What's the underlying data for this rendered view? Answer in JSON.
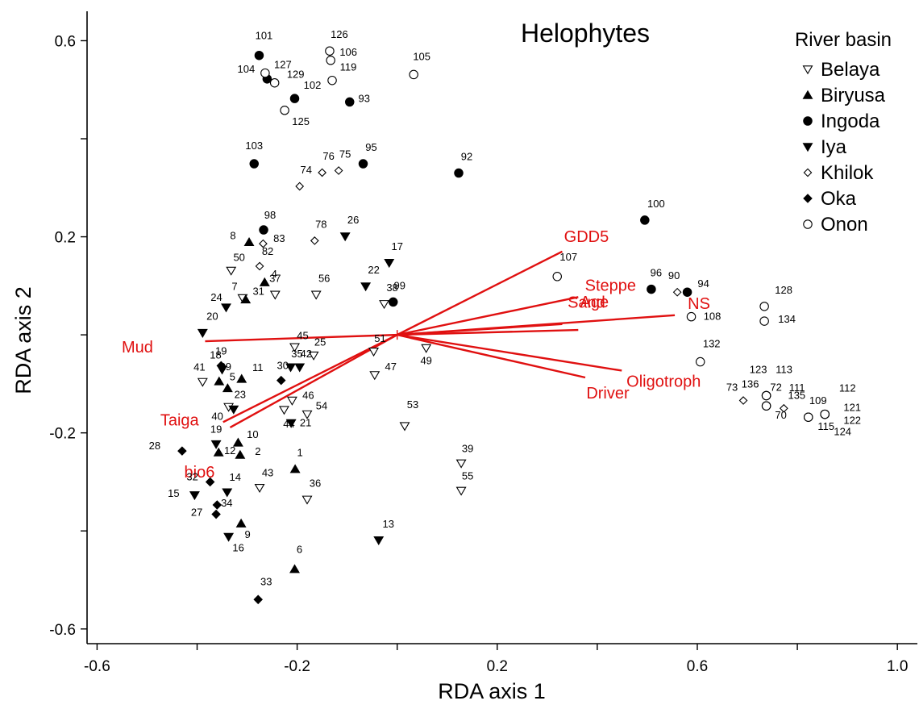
{
  "chart_data": {
    "type": "scatter",
    "title": "Helophytes",
    "xlabel": "RDA axis 1",
    "ylabel": "RDA axis 2",
    "xlim": [
      -0.62,
      1.04
    ],
    "ylim": [
      -0.63,
      0.66
    ],
    "xticks": [
      -0.6,
      -0.4,
      -0.2,
      0.0,
      0.2,
      0.4,
      0.6,
      0.8,
      1.0
    ],
    "yticks": [
      -0.6,
      -0.4,
      -0.2,
      0.0,
      0.2,
      0.4,
      0.6
    ],
    "xtick_labels": [
      "-0.6",
      "",
      "-0.2",
      "",
      "0.2",
      "",
      "0.6",
      "",
      "1.0"
    ],
    "ytick_labels": [
      "-0.6",
      "",
      "-0.2",
      "",
      "0.2",
      "",
      "0.6"
    ],
    "grid": false,
    "legend": {
      "title": "River basin",
      "position": "top-right",
      "items": [
        {
          "name": "Belaya",
          "marker": "triangle-down-open"
        },
        {
          "name": "Biryusa",
          "marker": "triangle-up-filled"
        },
        {
          "name": "Ingoda",
          "marker": "circle-filled"
        },
        {
          "name": "Iya",
          "marker": "triangle-down-filled"
        },
        {
          "name": "Khilok",
          "marker": "diamond-open"
        },
        {
          "name": "Oka",
          "marker": "diamond-filled"
        },
        {
          "name": "Onon",
          "marker": "circle-open"
        }
      ]
    },
    "series": [
      {
        "name": "Belaya",
        "marker": "triangle-down-open",
        "points": [
          {
            "label": "50",
            "x": -0.332,
            "y": 0.131
          },
          {
            "label": "7",
            "x": -0.309,
            "y": 0.075
          },
          {
            "label": "37",
            "x": -0.244,
            "y": 0.082
          },
          {
            "label": "56",
            "x": -0.162,
            "y": 0.082
          },
          {
            "label": "38",
            "x": -0.026,
            "y": 0.063
          },
          {
            "label": "45",
            "x": -0.205,
            "y": -0.025
          },
          {
            "label": "25",
            "x": -0.167,
            "y": -0.042
          },
          {
            "label": "51",
            "x": -0.047,
            "y": -0.034
          },
          {
            "label": "49",
            "x": 0.058,
            "y": -0.027
          },
          {
            "label": "47",
            "x": -0.045,
            "y": -0.082
          },
          {
            "label": "41",
            "x": -0.389,
            "y": -0.096
          },
          {
            "label": "40",
            "x": -0.337,
            "y": -0.147
          },
          {
            "label": "46",
            "x": -0.21,
            "y": -0.134
          },
          {
            "label": "44",
            "x": -0.226,
            "y": -0.153
          },
          {
            "label": "54",
            "x": -0.18,
            "y": -0.162
          },
          {
            "label": "53",
            "x": 0.015,
            "y": -0.186
          },
          {
            "label": "43",
            "x": -0.275,
            "y": -0.312
          },
          {
            "label": "36",
            "x": -0.18,
            "y": -0.336
          },
          {
            "label": "39",
            "x": 0.128,
            "y": -0.262
          },
          {
            "label": "55",
            "x": 0.128,
            "y": -0.318
          }
        ]
      },
      {
        "name": "Biryusa",
        "marker": "triangle-up-filled",
        "points": [
          {
            "label": "8",
            "x": -0.296,
            "y": 0.189
          },
          {
            "label": "4",
            "x": -0.265,
            "y": 0.107
          },
          {
            "label": "31",
            "x": -0.303,
            "y": 0.072
          },
          {
            "label": "29",
            "x": -0.356,
            "y": -0.095
          },
          {
            "label": "11",
            "x": -0.311,
            "y": -0.09
          },
          {
            "label": "5",
            "x": -0.339,
            "y": -0.109
          },
          {
            "label": "10",
            "x": -0.318,
            "y": -0.22
          },
          {
            "label": "12",
            "x": -0.357,
            "y": -0.24
          },
          {
            "label": "2",
            "x": -0.314,
            "y": -0.245
          },
          {
            "label": "1",
            "x": -0.204,
            "y": -0.274
          },
          {
            "label": "9",
            "x": -0.312,
            "y": -0.385
          },
          {
            "label": "6",
            "x": -0.205,
            "y": -0.478
          }
        ]
      },
      {
        "name": "Ingoda",
        "marker": "circle-filled",
        "points": [
          {
            "label": "101",
            "x": -0.276,
            "y": 0.57
          },
          {
            "label": "104",
            "x": -0.26,
            "y": 0.522
          },
          {
            "label": "102",
            "x": -0.205,
            "y": 0.482
          },
          {
            "label": "93",
            "x": -0.095,
            "y": 0.475
          },
          {
            "label": "103",
            "x": -0.286,
            "y": 0.349
          },
          {
            "label": "95",
            "x": -0.068,
            "y": 0.349
          },
          {
            "label": "92",
            "x": 0.123,
            "y": 0.33
          },
          {
            "label": "98",
            "x": -0.267,
            "y": 0.214
          },
          {
            "label": "100",
            "x": 0.495,
            "y": 0.234
          },
          {
            "label": "96",
            "x": 0.508,
            "y": 0.093
          },
          {
            "label": "94",
            "x": 0.58,
            "y": 0.087
          },
          {
            "label": "99",
            "x": -0.008,
            "y": 0.067
          }
        ]
      },
      {
        "name": "Iya",
        "marker": "triangle-down-filled",
        "points": [
          {
            "label": "26",
            "x": -0.104,
            "y": 0.201
          },
          {
            "label": "17",
            "x": -0.016,
            "y": 0.147
          },
          {
            "label": "22",
            "x": -0.063,
            "y": 0.099
          },
          {
            "label": "24",
            "x": -0.342,
            "y": 0.056
          },
          {
            "label": "20",
            "x": -0.389,
            "y": 0.004
          },
          {
            "label": "18",
            "x": -0.35,
            "y": -0.071
          },
          {
            "label": "35",
            "x": -0.213,
            "y": -0.066
          },
          {
            "label": "42",
            "x": -0.195,
            "y": -0.066
          },
          {
            "label": "23",
            "x": -0.327,
            "y": -0.152
          },
          {
            "label": "21",
            "x": -0.212,
            "y": -0.18
          },
          {
            "label": "19",
            "x": -0.362,
            "y": -0.223
          },
          {
            "label": "14",
            "x": -0.34,
            "y": -0.321
          },
          {
            "label": "15",
            "x": -0.405,
            "y": -0.327
          },
          {
            "label": "16",
            "x": -0.337,
            "y": -0.412
          },
          {
            "label": "13",
            "x": -0.037,
            "y": -0.419
          }
        ]
      },
      {
        "name": "Khilok",
        "marker": "diamond-open",
        "points": [
          {
            "label": "76",
            "x": -0.15,
            "y": 0.331
          },
          {
            "label": "75",
            "x": -0.117,
            "y": 0.335
          },
          {
            "label": "74",
            "x": -0.195,
            "y": 0.303
          },
          {
            "label": "78",
            "x": -0.165,
            "y": 0.192
          },
          {
            "label": "83",
            "x": -0.268,
            "y": 0.186
          },
          {
            "label": "82",
            "x": -0.275,
            "y": 0.14
          },
          {
            "label": "90",
            "x": 0.56,
            "y": 0.087
          },
          {
            "label": "73",
            "x": 0.692,
            "y": -0.134
          },
          {
            "label": "72",
            "x": 0.738,
            "y": -0.124
          },
          {
            "label": "135",
            "x": 0.773,
            "y": -0.15
          }
        ]
      },
      {
        "name": "Oka",
        "marker": "diamond-filled",
        "points": [
          {
            "label": "30",
            "x": -0.232,
            "y": -0.093
          },
          {
            "label": "19",
            "x": -0.352,
            "y": -0.063
          },
          {
            "label": "28",
            "x": -0.43,
            "y": -0.237
          },
          {
            "label": "32",
            "x": -0.374,
            "y": -0.3
          },
          {
            "label": "34",
            "x": -0.36,
            "y": -0.347
          },
          {
            "label": "27",
            "x": -0.362,
            "y": -0.366
          },
          {
            "label": "33",
            "x": -0.278,
            "y": -0.54
          }
        ]
      },
      {
        "name": "Onon",
        "marker": "circle-open",
        "points": [
          {
            "label": "126",
            "x": -0.135,
            "y": 0.579
          },
          {
            "label": "127",
            "x": -0.264,
            "y": 0.534
          },
          {
            "label": "106",
            "x": -0.133,
            "y": 0.56
          },
          {
            "label": "119",
            "x": -0.13,
            "y": 0.519
          },
          {
            "label": "129",
            "x": -0.245,
            "y": 0.514
          },
          {
            "label": "105",
            "x": 0.033,
            "y": 0.531
          },
          {
            "label": "125",
            "x": -0.225,
            "y": 0.458
          },
          {
            "label": "107",
            "x": 0.32,
            "y": 0.119
          },
          {
            "label": "108",
            "x": 0.588,
            "y": 0.037
          },
          {
            "label": "128",
            "x": 0.734,
            "y": 0.058
          },
          {
            "label": "134",
            "x": 0.734,
            "y": 0.028
          },
          {
            "label": "132",
            "x": 0.606,
            "y": -0.055
          },
          {
            "label": "123",
            "x": 0.738,
            "y": -0.124
          },
          {
            "label": "113",
            "x": 0.738,
            "y": -0.124
          },
          {
            "label": "136",
            "x": 0.738,
            "y": -0.124
          },
          {
            "label": "111",
            "x": 0.738,
            "y": -0.145
          },
          {
            "label": "70",
            "x": 0.738,
            "y": -0.145
          },
          {
            "label": "109",
            "x": 0.822,
            "y": -0.168
          },
          {
            "label": "115",
            "x": 0.822,
            "y": -0.168
          },
          {
            "label": "112",
            "x": 0.855,
            "y": -0.162
          },
          {
            "label": "121",
            "x": 0.855,
            "y": -0.162
          },
          {
            "label": "122",
            "x": 0.855,
            "y": -0.162
          },
          {
            "label": "124",
            "x": 0.855,
            "y": -0.162
          }
        ]
      }
    ],
    "vectors": [
      {
        "name": "GDD5",
        "x": 0.33,
        "y": 0.17
      },
      {
        "name": "Steppe",
        "x": 0.362,
        "y": 0.077
      },
      {
        "name": "Sand",
        "x": 0.33,
        "y": 0.022
      },
      {
        "name": "NS",
        "x": 0.555,
        "y": 0.04
      },
      {
        "name": "Age",
        "x": 0.362,
        "y": 0.01
      },
      {
        "name": "Oligotroph",
        "x": 0.449,
        "y": -0.073
      },
      {
        "name": "Driver",
        "x": 0.376,
        "y": -0.087
      },
      {
        "name": "Mud",
        "x": -0.384,
        "y": -0.013
      },
      {
        "name": "Taiga",
        "x": -0.348,
        "y": -0.178
      },
      {
        "name": "bio6",
        "x": -0.334,
        "y": -0.189
      }
    ]
  }
}
